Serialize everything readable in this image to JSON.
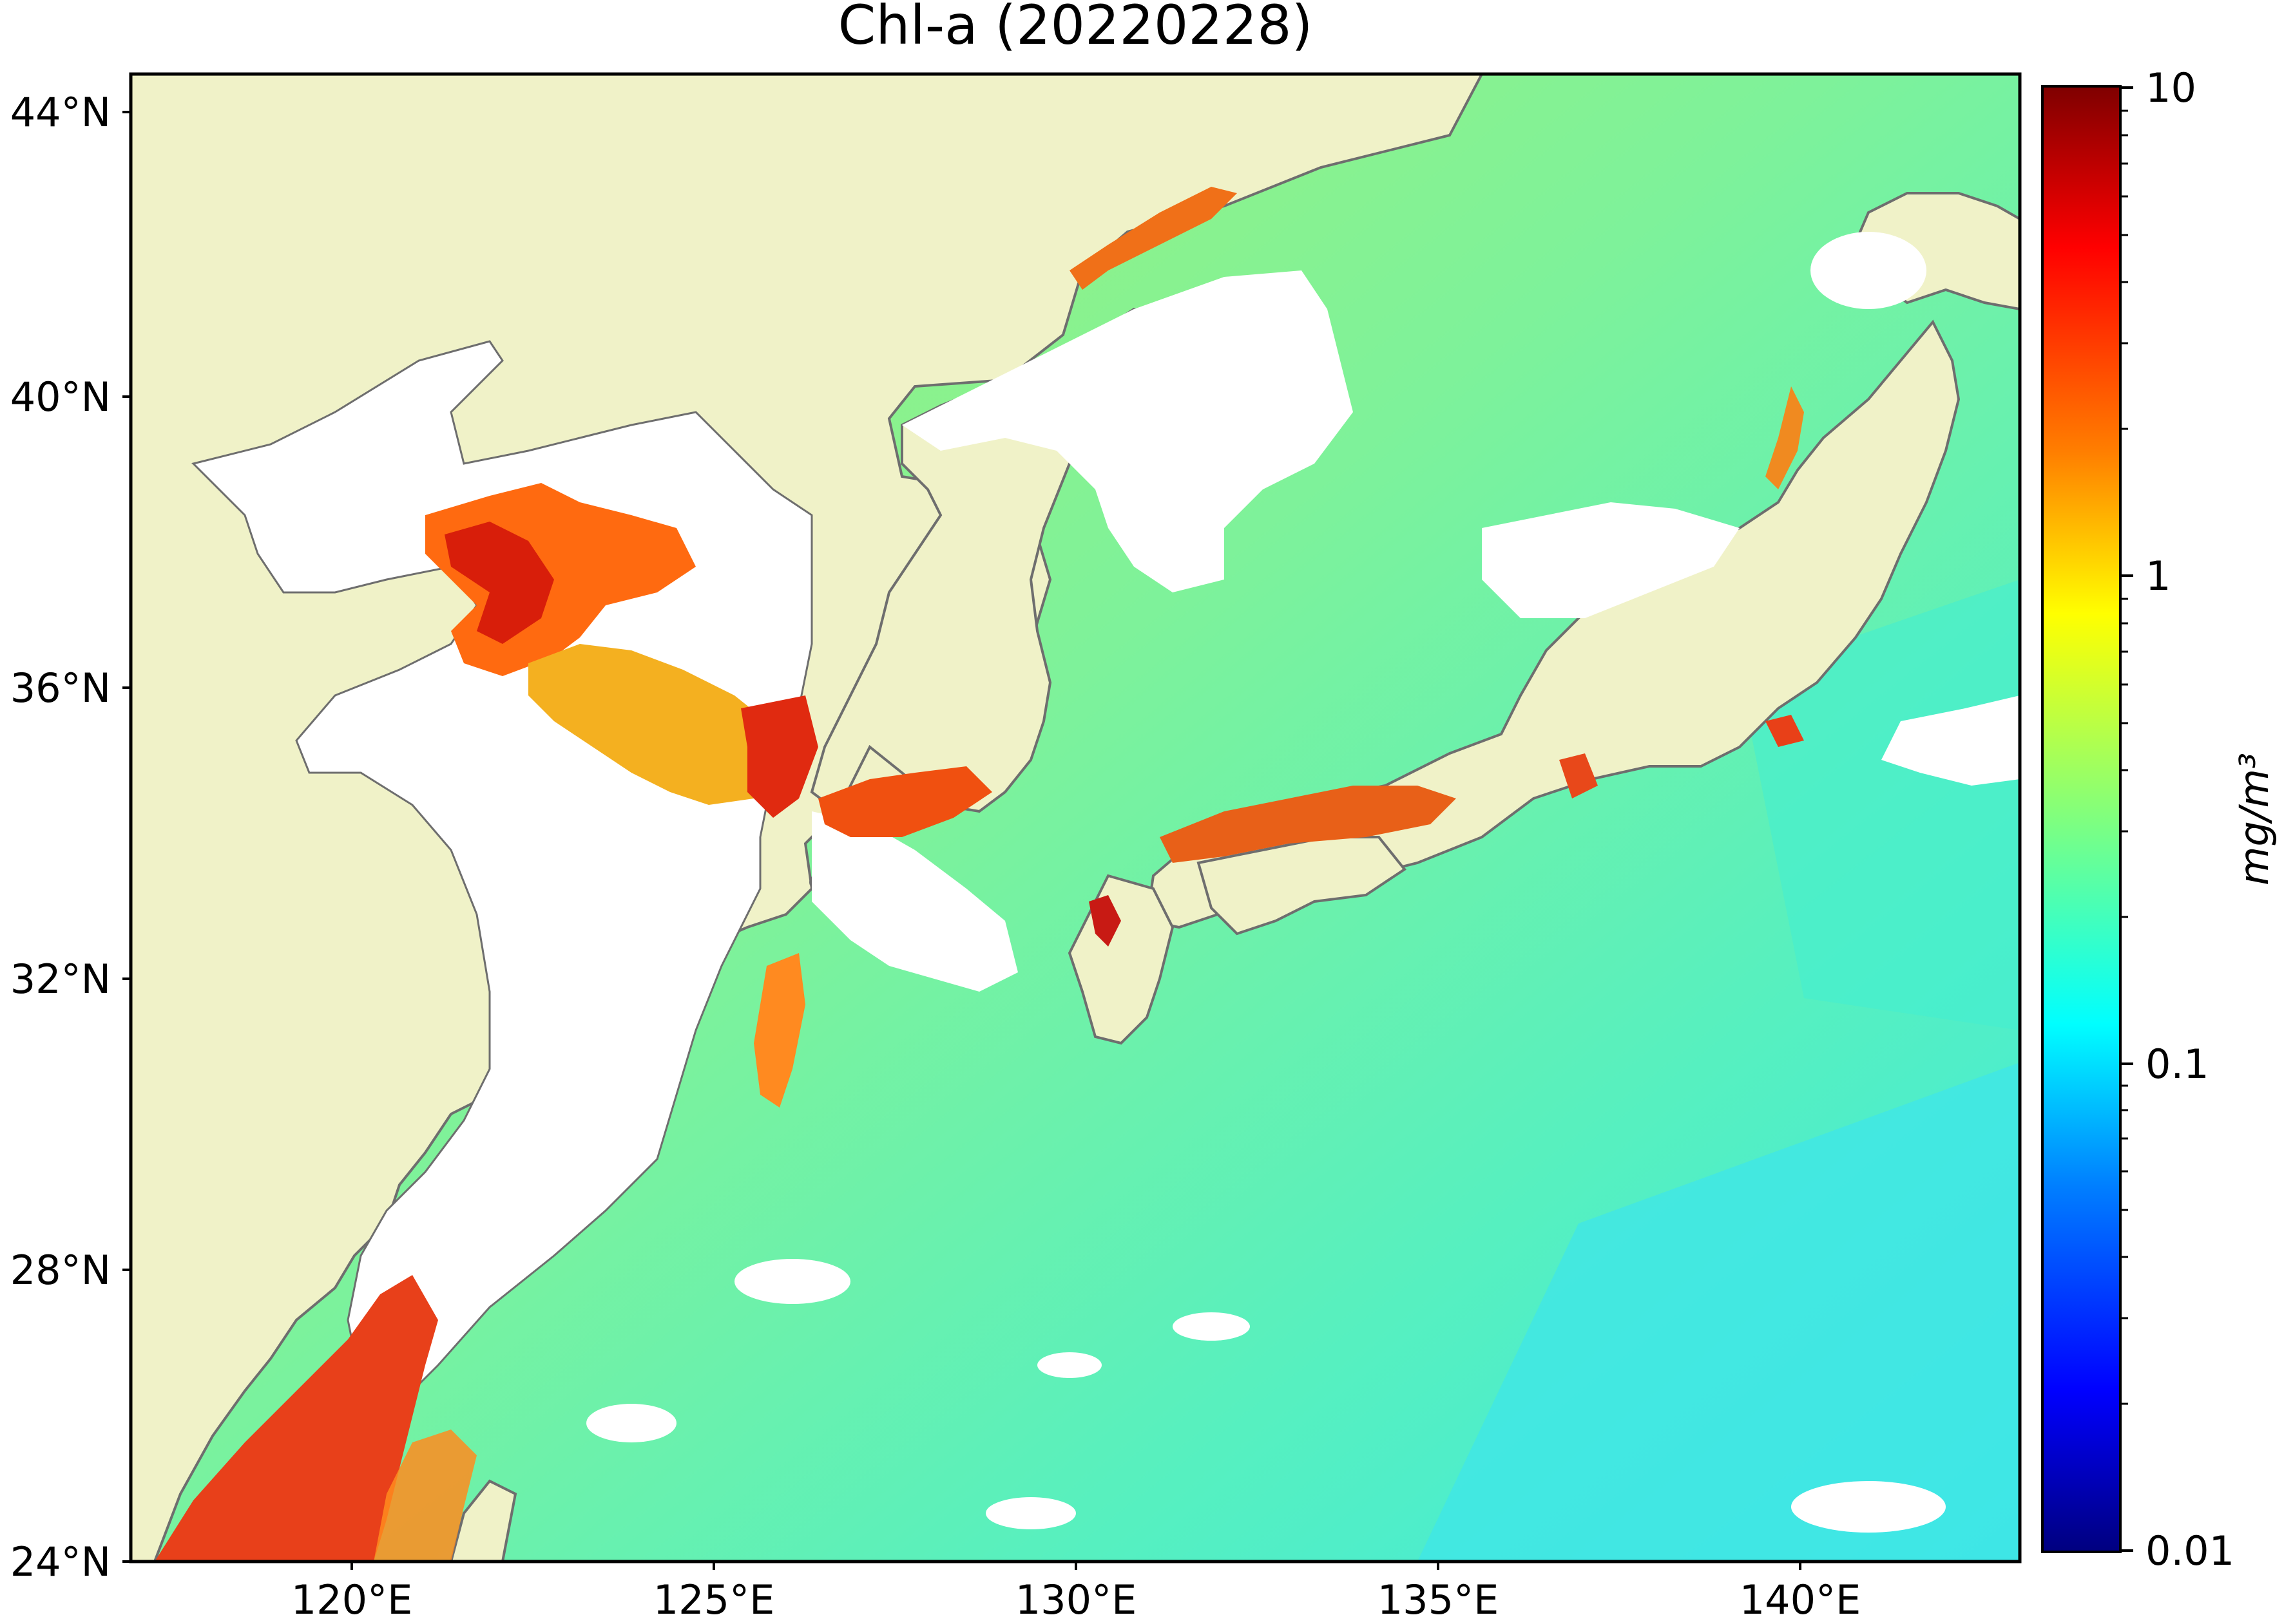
{
  "map": {
    "title": "Chl-a (20220228)",
    "lat_ticks": [
      {
        "label": "44°N",
        "value": 44
      },
      {
        "label": "40°N",
        "value": 40
      },
      {
        "label": "36°N",
        "value": 36
      },
      {
        "label": "32°N",
        "value": 32
      },
      {
        "label": "28°N",
        "value": 28
      },
      {
        "label": "24°N",
        "value": 24
      }
    ],
    "lon_ticks": [
      {
        "label": "120°E",
        "value": 120
      },
      {
        "label": "125°E",
        "value": 125
      },
      {
        "label": "130°E",
        "value": 130
      },
      {
        "label": "135°E",
        "value": 135
      },
      {
        "label": "140°E",
        "value": 140
      }
    ],
    "lat_range": [
      24,
      44.45
    ],
    "lon_range": [
      116.9,
      143.0
    ],
    "colors": {
      "land": "#f0f2c8",
      "cloud_no_data": "#ffffff",
      "coastline": "#6e6e6e"
    }
  },
  "colorbar": {
    "label": "mg/m³",
    "scale": "log",
    "range": [
      0.01,
      10
    ],
    "ticks": [
      {
        "label": "10",
        "value": 10
      },
      {
        "label": "1",
        "value": 1
      },
      {
        "label": "0.1",
        "value": 0.1
      },
      {
        "label": "0.01",
        "value": 0.01
      }
    ],
    "colormap": "jet",
    "stops": [
      "#00007f",
      "#0000ff",
      "#007fff",
      "#00ffff",
      "#7fff7f",
      "#ffff00",
      "#ff7f00",
      "#ff0000",
      "#7f0000"
    ]
  }
}
